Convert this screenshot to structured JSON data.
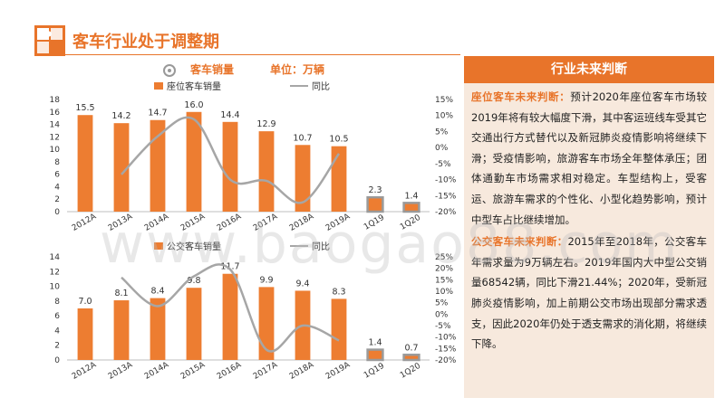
{
  "title": "客车行业处于调整期",
  "legend_top": {
    "label": "客车销量",
    "unit": "单位：万辆"
  },
  "colors": {
    "accent": "#e8742a",
    "bar": "#ed7d31",
    "line": "#a6a6a6",
    "panel_bg": "#f7e9dd"
  },
  "panel": {
    "header": "行业未来判断",
    "p1_label": "座位客车未来判断：",
    "p1_text": "预计2020年座位客车市场较2019年将有较大幅度下滑，其中客运班线车受其它交通出行方式替代以及新冠肺炎疫情影响将继续下滑；受疫情影响，旅游客车市场全年整体承压；团体通勤车市场需求相对稳定。车型结构上，受客运、旅游车需求的个性化、小型化趋势影响，预计中型车占比继续增加。",
    "p2_label": "公交客车未来判断：",
    "p2_text": "2015年至2018年，公交客车年需求量为9万辆左右。2019年国内大中型公交销量68542辆，同比下滑21.44%；2020年，受新冠肺炎疫情影响，加上前期公交市场出现部分需求透支，因此2020年仍处于透支需求的消化期，将继续下降。"
  },
  "watermark": "www.baogao88.com",
  "chart_data": [
    {
      "type": "bar",
      "categories": [
        "2012A",
        "2013A",
        "2014A",
        "2015A",
        "2016A",
        "2017A",
        "2018A",
        "2019A",
        "1Q19",
        "1Q20"
      ],
      "series": [
        {
          "name": "座位客车销量",
          "values": [
            15.5,
            14.2,
            14.7,
            16.0,
            14.4,
            12.9,
            10.7,
            10.5,
            2.3,
            1.4
          ]
        },
        {
          "name": "同比",
          "values": [
            null,
            -8.4,
            3.5,
            8.8,
            -10.0,
            -10.4,
            -17.1,
            -1.9,
            null,
            null
          ]
        }
      ],
      "ylim": [
        0,
        18
      ],
      "yticks": [
        0,
        2,
        4,
        6,
        8,
        10,
        12,
        14,
        16,
        18
      ],
      "y2lim": [
        -20,
        15
      ],
      "y2ticks": [
        "15%",
        "10%",
        "5%",
        "0%",
        "-5%",
        "-10%",
        "-15%",
        "-20%"
      ],
      "y2values": [
        15,
        10,
        5,
        0,
        -5,
        -10,
        -15,
        -20
      ]
    },
    {
      "type": "bar",
      "categories": [
        "2012A",
        "2013A",
        "2014A",
        "2015A",
        "2016A",
        "2017A",
        "2018A",
        "2019A",
        "1Q19",
        "1Q20"
      ],
      "series": [
        {
          "name": "公交客车销量",
          "values": [
            7.0,
            8.1,
            8.4,
            9.8,
            11.7,
            9.9,
            9.4,
            8.3,
            1.4,
            0.7
          ]
        },
        {
          "name": "同比",
          "values": [
            null,
            16.0,
            3.5,
            16.5,
            19.5,
            -15.5,
            -5.0,
            -11.5,
            null,
            null
          ]
        }
      ],
      "ylim": [
        0,
        14
      ],
      "yticks": [
        0,
        2,
        4,
        6,
        8,
        10,
        12,
        14
      ],
      "y2lim": [
        -20,
        25
      ],
      "y2ticks": [
        "25%",
        "20%",
        "15%",
        "10%",
        "5%",
        "0%",
        "-5%",
        "-10%",
        "-15%",
        "-20%"
      ],
      "y2values": [
        25,
        20,
        15,
        10,
        5,
        0,
        -5,
        -10,
        -15,
        -20
      ]
    }
  ]
}
